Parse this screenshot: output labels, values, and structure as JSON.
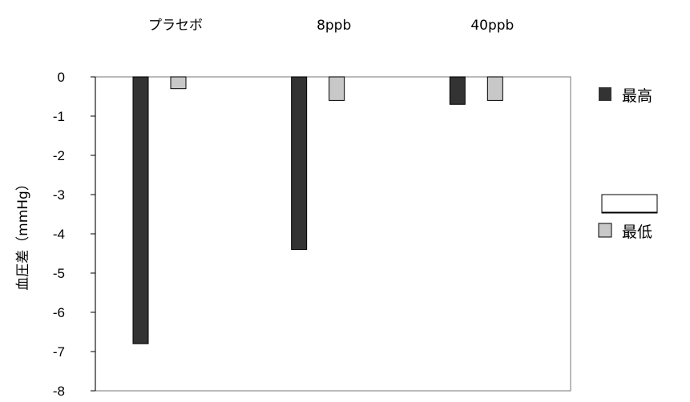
{
  "chart_data": {
    "type": "bar",
    "categories": [
      "プラセボ",
      "8ppb",
      "40ppb"
    ],
    "series": [
      {
        "name": "最高",
        "values": [
          -6.8,
          -4.4,
          -0.7
        ],
        "color": "#333333"
      },
      {
        "name": "最低",
        "values": [
          -0.3,
          -0.6,
          -0.6
        ],
        "color": "#c8c8c8"
      }
    ],
    "ylabel": "血圧差（mmHg）",
    "ylim": [
      -8,
      0
    ],
    "yticks": [
      "0",
      "-1",
      "-2",
      "-3",
      "-4",
      "-5",
      "-6",
      "-7",
      "-8"
    ],
    "category_labels_position": "top",
    "legend_position": "right",
    "grid": false
  }
}
